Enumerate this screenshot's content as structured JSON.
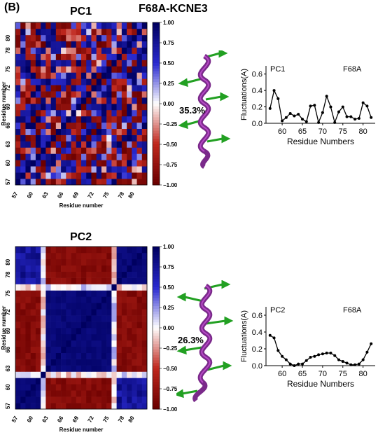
{
  "panel_label": "(B)",
  "main_title": "F68A-KCNE3",
  "pc1": {
    "title": "PC1",
    "percent": "35.3%",
    "heatmap": {
      "xlabel": "Residue number",
      "ylabel": "Residue number",
      "ticks": [
        "57",
        "60",
        "63",
        "66",
        "69",
        "72",
        "75",
        "78",
        "80"
      ],
      "colorbar_ticks": [
        "1.00",
        "0.75",
        "0.50",
        "0.25",
        "0.00",
        "−0.25",
        "−0.50",
        "−0.75",
        "−1.00"
      ]
    },
    "fluct": {
      "series_label": "PC1",
      "variant_label": "F68A",
      "ylabel": "Fluctuations(A)",
      "xlabel": "Residue Numbers",
      "yticks": [
        "0.6",
        "0.4",
        "0.2",
        "0.0"
      ],
      "xticks": [
        "60",
        "65",
        "70",
        "75",
        "80"
      ]
    }
  },
  "pc2": {
    "title": "PC2",
    "percent": "26.3%",
    "heatmap": {
      "xlabel": "Residue number",
      "ylabel": "Residue number",
      "ticks": [
        "57",
        "60",
        "63",
        "66",
        "69",
        "72",
        "75",
        "78",
        "80"
      ],
      "colorbar_ticks": [
        "1.00",
        "0.75",
        "0.50",
        "0.25",
        "0.00",
        "−0.25",
        "−0.50",
        "−0.75",
        "−1.00"
      ]
    },
    "fluct": {
      "series_label": "PC2",
      "variant_label": "F68A",
      "ylabel": "Fluctuations(A)",
      "xlabel": "Residue Numbers",
      "yticks": [
        "0.6",
        "0.4",
        "0.2",
        "0.0"
      ],
      "xticks": [
        "60",
        "65",
        "70",
        "75",
        "80"
      ]
    }
  },
  "chart_data": [
    {
      "type": "heatmap",
      "title": "PC1",
      "xlabel": "Residue number",
      "ylabel": "Residue number",
      "residue_range": [
        57,
        82
      ],
      "colorbar_range": [
        -1.0,
        1.0
      ],
      "colormap": [
        "#6b0000",
        "#c0281e",
        "#ffffff",
        "#2a2ad0",
        "#000060"
      ],
      "pattern": "mixed-correlation"
    },
    {
      "type": "line",
      "title": "PC1",
      "xlabel": "Residue Numbers",
      "ylabel": "Fluctuations(A)",
      "xlim": [
        56,
        83
      ],
      "ylim": [
        0,
        0.7
      ],
      "series": [
        {
          "name": "F68A",
          "x": [
            57,
            58,
            59,
            60,
            61,
            62,
            63,
            64,
            65,
            66,
            67,
            68,
            69,
            70,
            71,
            72,
            73,
            74,
            75,
            76,
            77,
            78,
            79,
            80,
            81,
            82
          ],
          "y": [
            0.18,
            0.4,
            0.3,
            0.03,
            0.07,
            0.12,
            0.09,
            0.11,
            0.05,
            0.02,
            0.21,
            0.22,
            0.01,
            0.13,
            0.33,
            0.2,
            0.01,
            0.14,
            0.2,
            0.08,
            0.08,
            0.05,
            0.06,
            0.25,
            0.21,
            0.07
          ]
        }
      ]
    },
    {
      "type": "heatmap",
      "title": "PC2",
      "xlabel": "Residue number",
      "ylabel": "Residue number",
      "residue_range": [
        57,
        82
      ],
      "colorbar_range": [
        -1.0,
        1.0
      ],
      "colormap": [
        "#6b0000",
        "#c0281e",
        "#ffffff",
        "#2a2ad0",
        "#000060"
      ],
      "pattern": "block-correlation",
      "blocks": [
        [
          57,
          62
        ],
        [
          63,
          76
        ],
        [
          77,
          82
        ]
      ]
    },
    {
      "type": "line",
      "title": "PC2",
      "xlabel": "Residue Numbers",
      "ylabel": "Fluctuations(A)",
      "xlim": [
        56,
        83
      ],
      "ylim": [
        0,
        0.7
      ],
      "series": [
        {
          "name": "F68A",
          "x": [
            57,
            58,
            59,
            60,
            61,
            62,
            63,
            64,
            65,
            66,
            67,
            68,
            69,
            70,
            71,
            72,
            73,
            74,
            75,
            76,
            77,
            78,
            79,
            80,
            81,
            82
          ],
          "y": [
            0.36,
            0.33,
            0.18,
            0.11,
            0.07,
            0.02,
            0.0,
            0.02,
            0.02,
            0.06,
            0.1,
            0.11,
            0.13,
            0.14,
            0.15,
            0.15,
            0.12,
            0.07,
            0.05,
            0.03,
            0.01,
            0.01,
            0.02,
            0.07,
            0.16,
            0.26
          ]
        }
      ]
    }
  ]
}
